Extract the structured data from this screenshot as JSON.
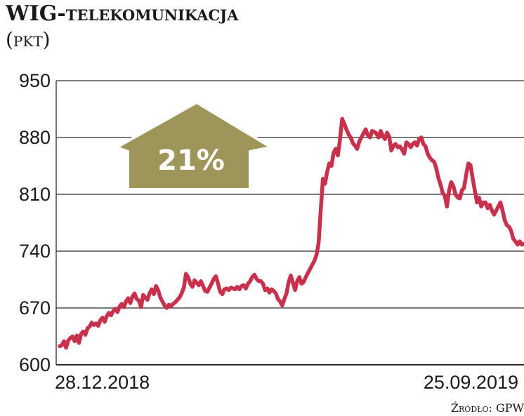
{
  "header": {
    "title_main": "WIG",
    "title_rest": "-telekomunikacja",
    "unit": "(pkt)"
  },
  "source": "Źródło: GPW",
  "colors": {
    "line": "#c8304c",
    "arrow_fill": "#9e9558",
    "arrow_stroke": "#ffffff",
    "grid": "#2b2b2b",
    "text": "#1a1a1a"
  },
  "chart_data": {
    "type": "line",
    "ylim": [
      600,
      950
    ],
    "yticks": [
      950,
      880,
      810,
      740,
      670,
      600
    ],
    "x_tick_labels": [
      "28.12.2018",
      "25.09.2019"
    ],
    "annotation": "21%",
    "grid": "horizontal",
    "series": [
      {
        "values": [
          623,
          624,
          629,
          621,
          630,
          633,
          635,
          629,
          636,
          627,
          638,
          641,
          637,
          645,
          647,
          652,
          649,
          651,
          648,
          655,
          658,
          653,
          660,
          664,
          661,
          666,
          669,
          665,
          672,
          675,
          671,
          678,
          682,
          676,
          684,
          688,
          681,
          679,
          671,
          686,
          683,
          680,
          688,
          693,
          687,
          697,
          692,
          683,
          678,
          673,
          670,
          674,
          672,
          675,
          677,
          680,
          683,
          688,
          695,
          712,
          708,
          700,
          696,
          704,
          701,
          698,
          703,
          697,
          691,
          690,
          695,
          700,
          706,
          709,
          700,
          690,
          687,
          693,
          694,
          692,
          695,
          694,
          693,
          696,
          693,
          697,
          698,
          694,
          700,
          703,
          708,
          711,
          706,
          703,
          703,
          700,
          692,
          694,
          689,
          693,
          691,
          688,
          681,
          678,
          673,
          681,
          688,
          702,
          710,
          701,
          692,
          703,
          708,
          700,
          702,
          708,
          713,
          718,
          723,
          728,
          735,
          750,
          790,
          829,
          823,
          838,
          848,
          845,
          861,
          866,
          858,
          877,
          903,
          897,
          890,
          884,
          880,
          873,
          870,
          866,
          875,
          880,
          885,
          890,
          883,
          880,
          888,
          887,
          885,
          880,
          888,
          882,
          878,
          886,
          881,
          864,
          870,
          872,
          868,
          869,
          865,
          860,
          874,
          872,
          868,
          872,
          874,
          870,
          878,
          880,
          872,
          869,
          860,
          855,
          852,
          850,
          842,
          830,
          822,
          812,
          808,
          795,
          815,
          825,
          820,
          810,
          806,
          805,
          815,
          818,
          835,
          848,
          846,
          830,
          815,
          800,
          806,
          795,
          800,
          800,
          793,
          797,
          790,
          785,
          790,
          795,
          800,
          790,
          778,
          772,
          770,
          765,
          755,
          752,
          748,
          752,
          748,
          749
        ]
      }
    ]
  }
}
